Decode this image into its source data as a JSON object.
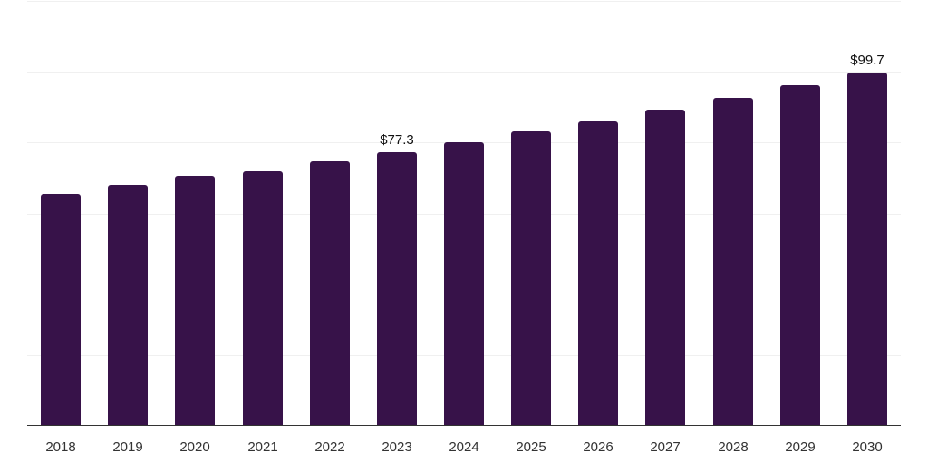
{
  "chart_data": {
    "type": "bar",
    "title": "",
    "xlabel": "",
    "ylabel": "",
    "categories": [
      "2018",
      "2019",
      "2020",
      "2021",
      "2022",
      "2023",
      "2024",
      "2025",
      "2026",
      "2027",
      "2028",
      "2029",
      "2030"
    ],
    "values": [
      65.4,
      68.0,
      70.6,
      71.8,
      74.6,
      77.3,
      80.0,
      83.1,
      85.9,
      89.2,
      92.5,
      96.1,
      99.7
    ],
    "data_labels": [
      {
        "category": "2023",
        "text": "$77.3"
      },
      {
        "category": "2030",
        "text": "$99.7"
      }
    ],
    "ylim": [
      0,
      120
    ],
    "yticks": [
      0,
      20,
      40,
      60,
      80,
      100,
      120
    ],
    "ytick_labels_visible": false,
    "grid": true,
    "legend": null,
    "bar_color": "#371249",
    "grid_color": "#f0f0f0",
    "axis_color": "#333333"
  },
  "labels": {
    "2023": "$77.3",
    "2030": "$99.7"
  }
}
